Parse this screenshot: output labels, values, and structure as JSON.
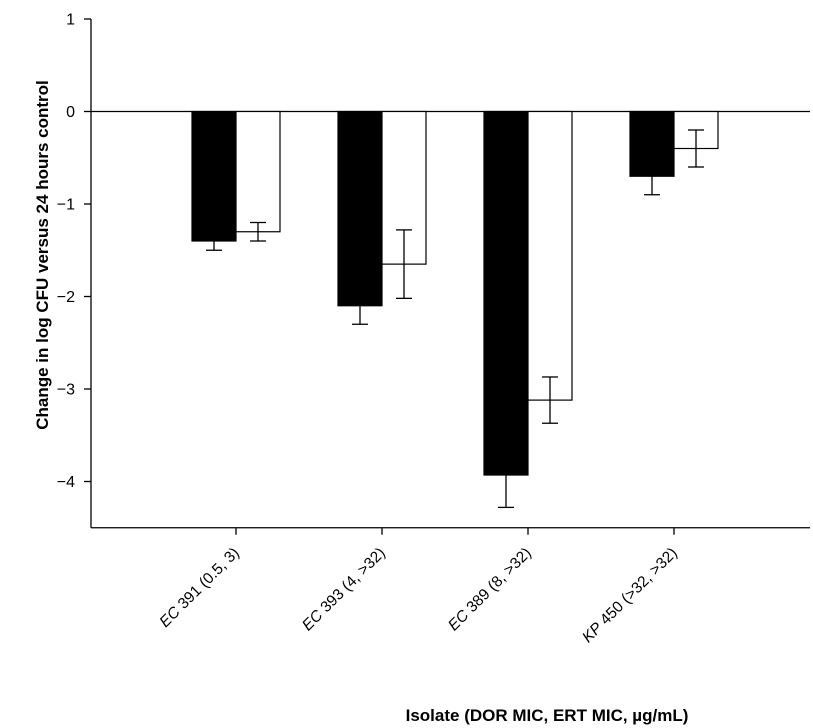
{
  "chart_data": {
    "type": "bar",
    "title": "",
    "xlabel": "Isolate (DOR MIC, ERT MIC, µg/mL)",
    "ylabel": "Change in log CFU versus 24 hours control",
    "ylim": [
      -4.5,
      1
    ],
    "yticks": [
      1,
      0,
      -1,
      -2,
      -3,
      -4
    ],
    "ytick_labels": [
      "1",
      "0",
      "−1",
      "−2",
      "−3",
      "−4"
    ],
    "grid": false,
    "legend": "none",
    "categories": [
      {
        "prefix": "EC",
        "rest": " 391 (0.5, 3)"
      },
      {
        "prefix": "EC",
        "rest": " 393 (4, >32)"
      },
      {
        "prefix": "EC",
        "rest": " 389 (8, >32)"
      },
      {
        "prefix": "KP",
        "rest": " 450 (>32, >32)"
      }
    ],
    "series": [
      {
        "fill": "#000000",
        "values": [
          -1.4,
          -2.1,
          -3.93,
          -0.7
        ],
        "errors": [
          0.1,
          0.2,
          0.35,
          0.2
        ]
      },
      {
        "fill": "#ffffff",
        "values": [
          -1.3,
          -1.65,
          -3.12,
          -0.4
        ],
        "errors": [
          0.1,
          0.37,
          0.25,
          0.2
        ]
      }
    ]
  }
}
